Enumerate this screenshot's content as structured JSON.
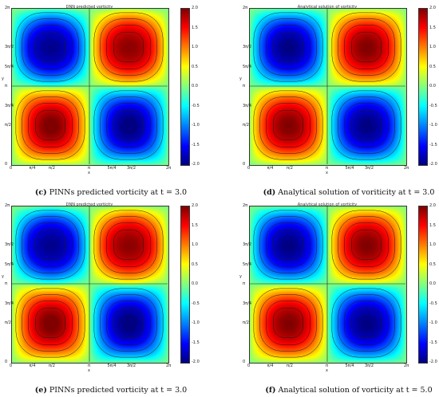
{
  "panels": [
    {
      "id": "c",
      "plot_title": "DNN predicted vorticity",
      "caption_letter": "(c)",
      "caption_text": "PINNs predicted vorticity at t = 3.0"
    },
    {
      "id": "d",
      "plot_title": "Analytical solution of vorticity",
      "caption_letter": "(d)",
      "caption_text": "Analytical solution of voriticity at t = 3.0"
    },
    {
      "id": "e",
      "plot_title": "DNN predicted vorticity",
      "caption_letter": "(e)",
      "caption_text": "PINNs predicted vorticity at t = 3.0"
    },
    {
      "id": "f",
      "plot_title": "Analytical solution of vorticity",
      "caption_letter": "(f)",
      "caption_text": "Analytical solution of vorticity at t = 5.0"
    }
  ],
  "axes": {
    "xlabel": "x",
    "ylabel": "y",
    "x_ticks": [
      "0",
      "π/4",
      "π/2",
      "π",
      "5π/4",
      "3π/2",
      "2π"
    ],
    "y_ticks": [
      "2π",
      "3π/2",
      "5π/4",
      "π",
      "3π/4",
      "π/2",
      "0"
    ]
  },
  "colorbar": {
    "ticks": [
      "2.0",
      "1.5",
      "1.0",
      "0.5",
      "0.0",
      "-0.5",
      "-1.0",
      "-1.5",
      "-2.0"
    ],
    "range": [
      -2.0,
      2.0
    ],
    "colormap": "jet"
  },
  "chart_data": [
    {
      "type": "heatmap",
      "title": "DNN predicted vorticity",
      "xlabel": "x",
      "ylabel": "y",
      "xlim": [
        0,
        6.2832
      ],
      "ylim": [
        0,
        6.2832
      ],
      "zlim": [
        -2.0,
        2.0
      ],
      "field": "w = sin(x)·sin(y), top-left and bottom-right quadrants negative, top-right and bottom-left positive",
      "extrema": [
        {
          "quadrant": "top-left",
          "value": -2.0
        },
        {
          "quadrant": "top-right",
          "value": 2.0
        },
        {
          "quadrant": "bottom-left",
          "value": 2.0
        },
        {
          "quadrant": "bottom-right",
          "value": -2.0
        }
      ]
    },
    {
      "type": "heatmap",
      "title": "Analytical solution of vorticity",
      "xlabel": "x",
      "ylabel": "y",
      "xlim": [
        0,
        6.2832
      ],
      "ylim": [
        0,
        6.2832
      ],
      "zlim": [
        -2.0,
        2.0
      ],
      "extrema": [
        {
          "quadrant": "top-left",
          "value": -2.0
        },
        {
          "quadrant": "top-right",
          "value": 2.0
        },
        {
          "quadrant": "bottom-left",
          "value": 2.0
        },
        {
          "quadrant": "bottom-right",
          "value": -2.0
        }
      ]
    },
    {
      "type": "heatmap",
      "title": "DNN predicted vorticity",
      "xlabel": "x",
      "ylabel": "y",
      "xlim": [
        0,
        6.2832
      ],
      "ylim": [
        0,
        6.2832
      ],
      "zlim": [
        -2.0,
        2.0
      ],
      "extrema": [
        {
          "quadrant": "top-left",
          "value": -2.0
        },
        {
          "quadrant": "top-right",
          "value": 2.0
        },
        {
          "quadrant": "bottom-left",
          "value": 2.0
        },
        {
          "quadrant": "bottom-right",
          "value": -2.0
        }
      ]
    },
    {
      "type": "heatmap",
      "title": "Analytical solution of vorticity",
      "xlabel": "x",
      "ylabel": "y",
      "xlim": [
        0,
        6.2832
      ],
      "ylim": [
        0,
        6.2832
      ],
      "zlim": [
        -2.0,
        2.0
      ],
      "extrema": [
        {
          "quadrant": "top-left",
          "value": -2.0
        },
        {
          "quadrant": "top-right",
          "value": 2.0
        },
        {
          "quadrant": "bottom-left",
          "value": 2.0
        },
        {
          "quadrant": "bottom-right",
          "value": -2.0
        }
      ]
    }
  ]
}
